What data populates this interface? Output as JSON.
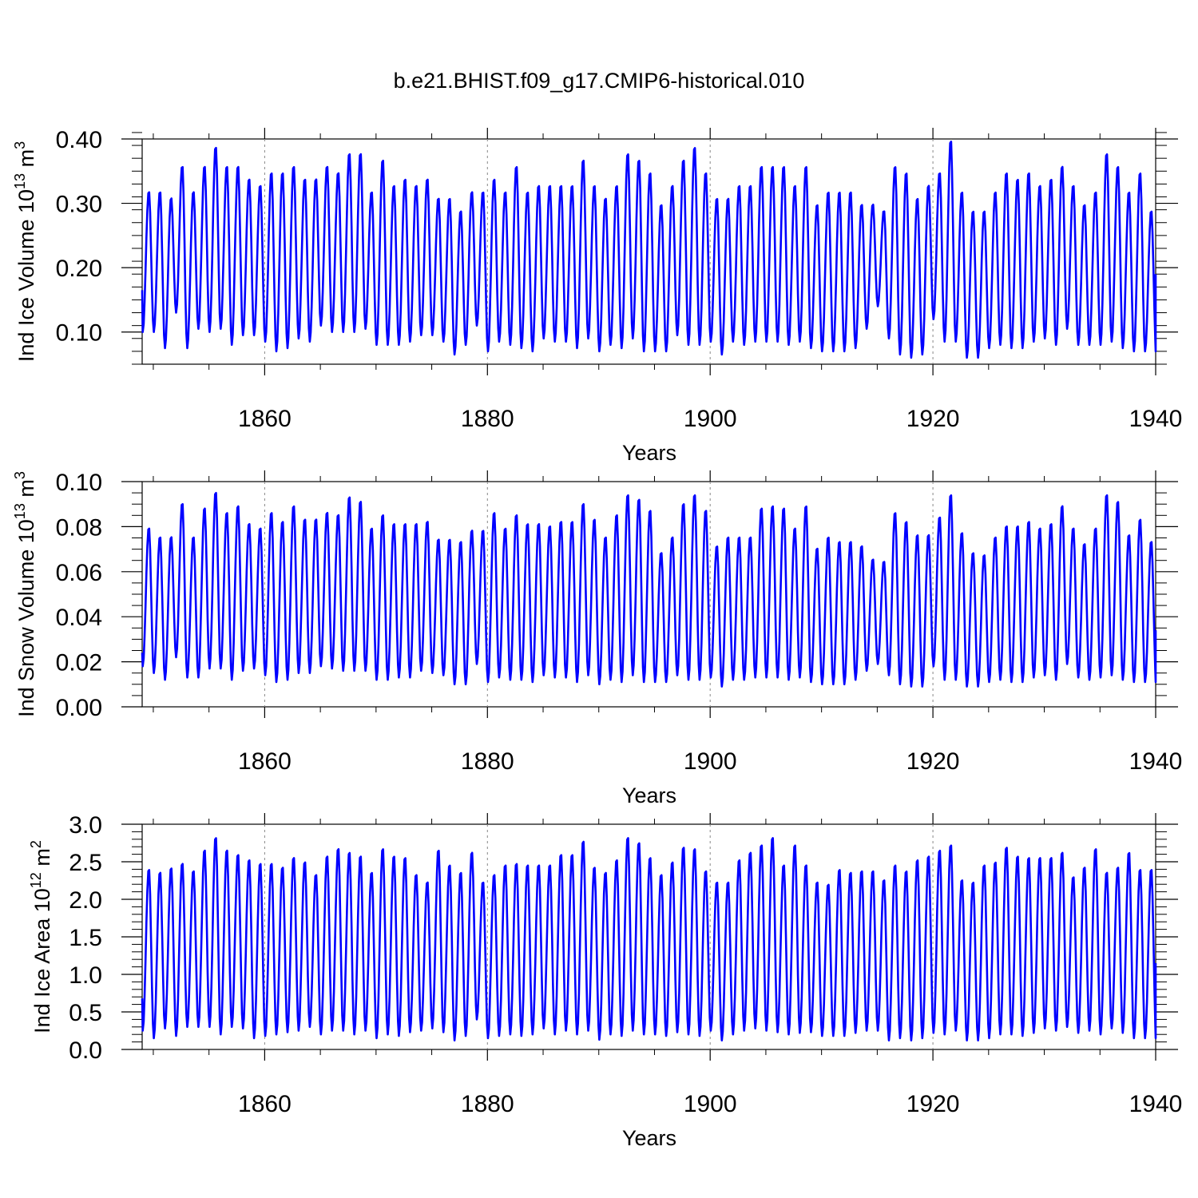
{
  "figure": {
    "title": "b.e21.BHIST.f09_g17.CMIP6-historical.010"
  },
  "chart_data": [
    {
      "type": "line",
      "xlabel": "Years",
      "ylabel": "Ind Ice Volume 10",
      "ylabel_exp": "13",
      "ylabel_unit": " m",
      "ylabel_unit_exp": "3",
      "xlim": [
        1849,
        1940
      ],
      "ylim": [
        0.05,
        0.4
      ],
      "xticks": [
        1860,
        1880,
        1900,
        1920,
        1940
      ],
      "yticks": [
        0.1,
        0.2,
        0.3,
        0.4
      ],
      "ytick_labels": [
        "0.10",
        "0.20",
        "0.30",
        "0.40"
      ],
      "yminor_step": 0.02,
      "series": [
        {
          "name": "Ind Ice Volume",
          "color": "#0000ff",
          "peaks": [
            0.32,
            0.32,
            0.31,
            0.36,
            0.32,
            0.36,
            0.39,
            0.36,
            0.36,
            0.34,
            0.33,
            0.35,
            0.35,
            0.36,
            0.34,
            0.34,
            0.36,
            0.35,
            0.38,
            0.38,
            0.32,
            0.37,
            0.33,
            0.34,
            0.33,
            0.34,
            0.31,
            0.31,
            0.29,
            0.32,
            0.32,
            0.34,
            0.32,
            0.36,
            0.32,
            0.33,
            0.33,
            0.33,
            0.33,
            0.37,
            0.33,
            0.31,
            0.33,
            0.38,
            0.37,
            0.35,
            0.3,
            0.33,
            0.37,
            0.39,
            0.35,
            0.31,
            0.31,
            0.33,
            0.33,
            0.36,
            0.36,
            0.36,
            0.33,
            0.36,
            0.3,
            0.32,
            0.32,
            0.32,
            0.3,
            0.3,
            0.29,
            0.36,
            0.35,
            0.31,
            0.33,
            0.35,
            0.4,
            0.32,
            0.29,
            0.29,
            0.32,
            0.35,
            0.34,
            0.35,
            0.33,
            0.34,
            0.36,
            0.33,
            0.3,
            0.32,
            0.38,
            0.36,
            0.32,
            0.35,
            0.29
          ],
          "troughs": [
            0.1,
            0.1,
            0.075,
            0.13,
            0.075,
            0.105,
            0.1,
            0.105,
            0.08,
            0.095,
            0.095,
            0.085,
            0.07,
            0.075,
            0.09,
            0.085,
            0.11,
            0.1,
            0.1,
            0.1,
            0.105,
            0.08,
            0.08,
            0.08,
            0.085,
            0.095,
            0.095,
            0.085,
            0.065,
            0.08,
            0.11,
            0.07,
            0.085,
            0.08,
            0.075,
            0.07,
            0.09,
            0.085,
            0.085,
            0.075,
            0.09,
            0.07,
            0.08,
            0.075,
            0.09,
            0.07,
            0.07,
            0.07,
            0.095,
            0.08,
            0.08,
            0.085,
            0.065,
            0.085,
            0.08,
            0.085,
            0.085,
            0.085,
            0.08,
            0.085,
            0.075,
            0.07,
            0.07,
            0.07,
            0.075,
            0.105,
            0.14,
            0.09,
            0.065,
            0.06,
            0.065,
            0.12,
            0.085,
            0.085,
            0.06,
            0.06,
            0.075,
            0.08,
            0.075,
            0.075,
            0.085,
            0.09,
            0.08,
            0.105,
            0.08,
            0.08,
            0.08,
            0.085,
            0.075,
            0.07,
            0.07
          ],
          "start": 0.165,
          "end": 0.19
        }
      ]
    },
    {
      "type": "line",
      "xlabel": "Years",
      "ylabel": "Ind Snow Volume 10",
      "ylabel_exp": "13",
      "ylabel_unit": " m",
      "ylabel_unit_exp": "3",
      "xlim": [
        1849,
        1940
      ],
      "ylim": [
        0.0,
        0.1
      ],
      "xticks": [
        1860,
        1880,
        1900,
        1920,
        1940
      ],
      "yticks": [
        0.0,
        0.02,
        0.04,
        0.06,
        0.08,
        0.1
      ],
      "ytick_labels": [
        "0.00",
        "0.02",
        "0.04",
        "0.06",
        "0.08",
        "0.10"
      ],
      "yminor_step": 0.005,
      "series": [
        {
          "name": "Ind Snow Volume",
          "color": "#0000ff",
          "peaks": [
            0.08,
            0.076,
            0.076,
            0.091,
            0.076,
            0.089,
            0.096,
            0.087,
            0.09,
            0.082,
            0.08,
            0.087,
            0.083,
            0.09,
            0.084,
            0.084,
            0.087,
            0.086,
            0.094,
            0.092,
            0.08,
            0.086,
            0.082,
            0.082,
            0.082,
            0.083,
            0.075,
            0.075,
            0.074,
            0.079,
            0.079,
            0.087,
            0.08,
            0.086,
            0.082,
            0.082,
            0.081,
            0.083,
            0.083,
            0.091,
            0.084,
            0.076,
            0.086,
            0.095,
            0.093,
            0.088,
            0.069,
            0.076,
            0.091,
            0.095,
            0.088,
            0.072,
            0.076,
            0.076,
            0.076,
            0.089,
            0.09,
            0.089,
            0.08,
            0.09,
            0.071,
            0.076,
            0.074,
            0.074,
            0.072,
            0.066,
            0.065,
            0.087,
            0.083,
            0.077,
            0.077,
            0.085,
            0.095,
            0.078,
            0.069,
            0.068,
            0.076,
            0.081,
            0.081,
            0.083,
            0.08,
            0.082,
            0.09,
            0.08,
            0.073,
            0.08,
            0.095,
            0.092,
            0.077,
            0.084,
            0.074
          ],
          "troughs": [
            0.018,
            0.015,
            0.012,
            0.022,
            0.013,
            0.013,
            0.017,
            0.017,
            0.012,
            0.016,
            0.017,
            0.014,
            0.011,
            0.012,
            0.015,
            0.015,
            0.018,
            0.017,
            0.016,
            0.016,
            0.016,
            0.012,
            0.012,
            0.013,
            0.013,
            0.016,
            0.015,
            0.014,
            0.01,
            0.01,
            0.019,
            0.011,
            0.013,
            0.012,
            0.012,
            0.011,
            0.014,
            0.013,
            0.013,
            0.011,
            0.014,
            0.01,
            0.012,
            0.011,
            0.014,
            0.011,
            0.011,
            0.011,
            0.014,
            0.012,
            0.012,
            0.013,
            0.009,
            0.012,
            0.012,
            0.013,
            0.013,
            0.013,
            0.012,
            0.013,
            0.011,
            0.01,
            0.01,
            0.01,
            0.012,
            0.016,
            0.019,
            0.014,
            0.01,
            0.009,
            0.009,
            0.018,
            0.012,
            0.012,
            0.009,
            0.009,
            0.011,
            0.012,
            0.011,
            0.011,
            0.013,
            0.014,
            0.012,
            0.019,
            0.013,
            0.012,
            0.013,
            0.014,
            0.012,
            0.011,
            0.011
          ],
          "start": 0.024,
          "end": 0.034
        }
      ]
    },
    {
      "type": "line",
      "xlabel": "Years",
      "ylabel": "Ind Ice Area 10",
      "ylabel_exp": "12",
      "ylabel_unit": " m",
      "ylabel_unit_exp": "2",
      "xlim": [
        1849,
        1940
      ],
      "ylim": [
        0.0,
        3.0
      ],
      "xticks": [
        1860,
        1880,
        1900,
        1920,
        1940
      ],
      "yticks": [
        0.0,
        0.5,
        1.0,
        1.5,
        2.0,
        2.5,
        3.0
      ],
      "ytick_labels": [
        "0.0",
        "0.5",
        "1.0",
        "1.5",
        "2.0",
        "2.5",
        "3.0"
      ],
      "yminor_step": 0.1,
      "series": [
        {
          "name": "Ind Ice Area",
          "color": "#0000ff",
          "peaks": [
            2.42,
            2.38,
            2.44,
            2.5,
            2.4,
            2.68,
            2.85,
            2.68,
            2.62,
            2.55,
            2.5,
            2.5,
            2.45,
            2.58,
            2.52,
            2.35,
            2.6,
            2.7,
            2.65,
            2.6,
            2.38,
            2.7,
            2.6,
            2.58,
            2.35,
            2.25,
            2.68,
            2.48,
            2.38,
            2.65,
            2.25,
            2.35,
            2.48,
            2.5,
            2.48,
            2.48,
            2.48,
            2.62,
            2.62,
            2.8,
            2.45,
            2.38,
            2.55,
            2.85,
            2.78,
            2.58,
            2.35,
            2.52,
            2.72,
            2.7,
            2.4,
            2.25,
            2.25,
            2.55,
            2.65,
            2.75,
            2.85,
            2.48,
            2.75,
            2.48,
            2.25,
            2.22,
            2.42,
            2.38,
            2.4,
            2.4,
            2.28,
            2.48,
            2.4,
            2.55,
            2.6,
            2.68,
            2.75,
            2.28,
            2.25,
            2.48,
            2.52,
            2.72,
            2.6,
            2.58,
            2.58,
            2.58,
            2.65,
            2.32,
            2.45,
            2.7,
            2.38,
            2.45,
            2.65,
            2.42,
            2.42
          ],
          "troughs": [
            0.25,
            0.15,
            0.28,
            0.18,
            0.3,
            0.3,
            0.3,
            0.2,
            0.3,
            0.28,
            0.15,
            0.18,
            0.2,
            0.23,
            0.25,
            0.3,
            0.2,
            0.25,
            0.25,
            0.2,
            0.25,
            0.15,
            0.2,
            0.18,
            0.23,
            0.25,
            0.28,
            0.23,
            0.12,
            0.18,
            0.4,
            0.15,
            0.18,
            0.2,
            0.18,
            0.2,
            0.28,
            0.2,
            0.25,
            0.2,
            0.25,
            0.13,
            0.2,
            0.18,
            0.25,
            0.2,
            0.2,
            0.18,
            0.23,
            0.2,
            0.18,
            0.25,
            0.12,
            0.2,
            0.25,
            0.28,
            0.25,
            0.23,
            0.2,
            0.22,
            0.23,
            0.18,
            0.18,
            0.18,
            0.22,
            0.25,
            0.25,
            0.12,
            0.15,
            0.12,
            0.15,
            0.22,
            0.2,
            0.25,
            0.12,
            0.12,
            0.15,
            0.2,
            0.2,
            0.18,
            0.22,
            0.28,
            0.25,
            0.3,
            0.22,
            0.25,
            0.2,
            0.28,
            0.22,
            0.15,
            0.15
          ],
          "start": 0.68,
          "end": 1.15
        }
      ]
    }
  ]
}
